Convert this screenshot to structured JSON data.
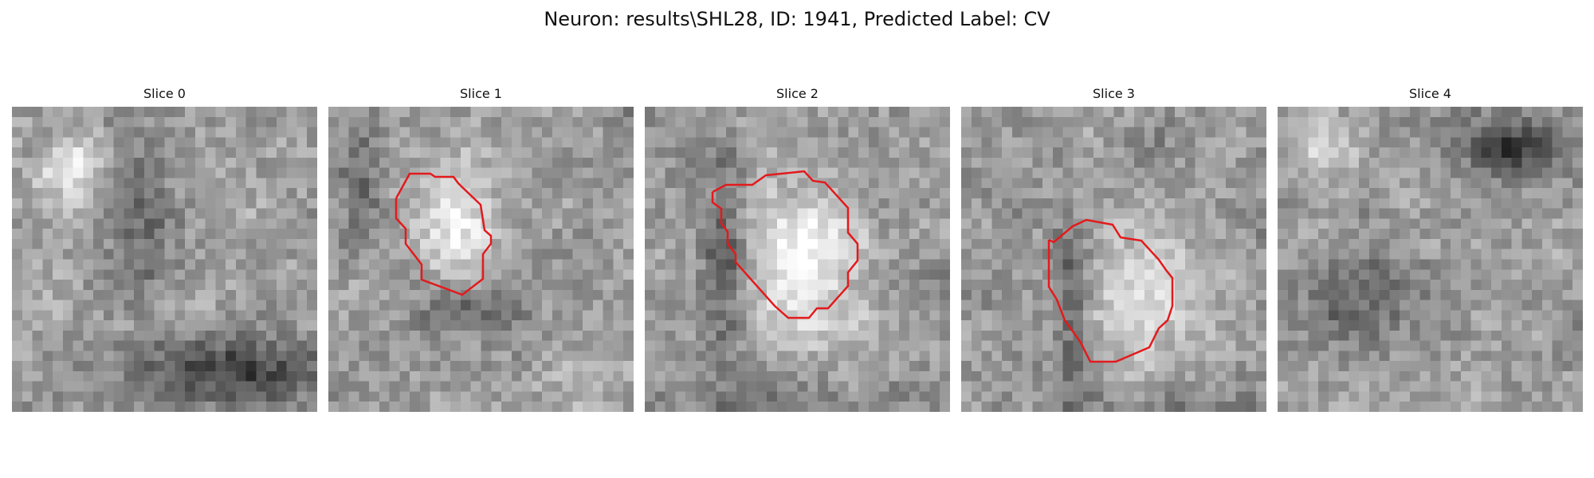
{
  "title": "Neuron: results\\SHL28, ID: 1941, Predicted Label: CV",
  "panels": [
    {
      "label": "Slice 0",
      "has_contour": false
    },
    {
      "label": "Slice 1",
      "has_contour": true
    },
    {
      "label": "Slice 2",
      "has_contour": true
    },
    {
      "label": "Slice 3",
      "has_contour": true
    },
    {
      "label": "Slice 4",
      "has_contour": false
    }
  ],
  "colors": {
    "contour": "#e31a1c",
    "background": "#ffffff"
  }
}
